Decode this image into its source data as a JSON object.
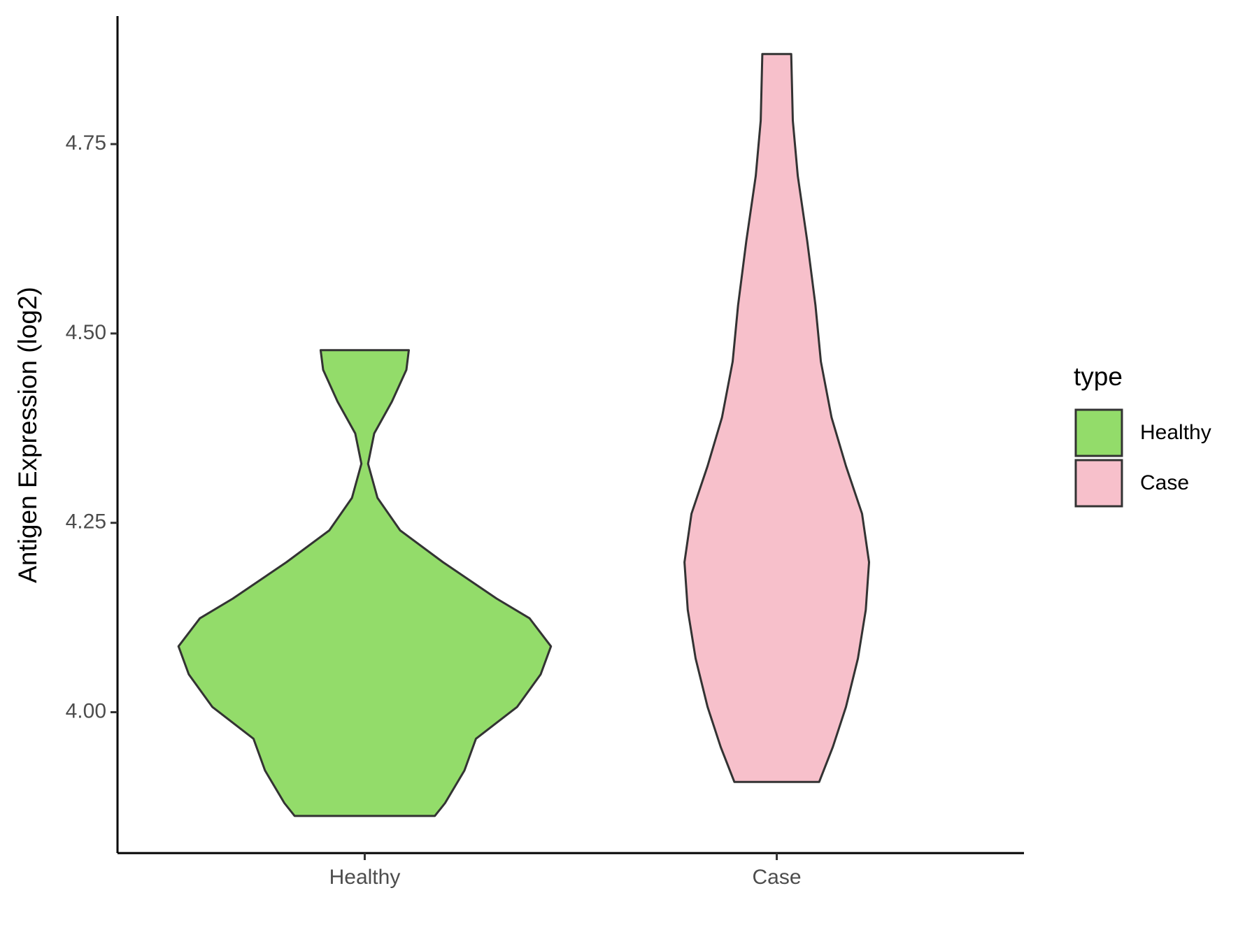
{
  "chart_data": {
    "type": "violin",
    "y_label": "Antigen Expression (log2)",
    "legend_title": "type",
    "categories": [
      "Healthy",
      "Case"
    ],
    "ylim": [
      3.814,
      4.919
    ],
    "yticks": [
      {
        "value": 4,
        "label": "4.00"
      },
      {
        "value": 4.25,
        "label": "4.25"
      },
      {
        "value": 4.5,
        "label": "4.50"
      },
      {
        "value": 4.75,
        "label": "4.75"
      }
    ],
    "legend_position": "right",
    "series": [
      {
        "name": "Healthy",
        "color": "#93dc6a",
        "y": [
          3.863,
          3.88,
          3.923,
          3.965,
          4.007,
          4.05,
          4.087,
          4.124,
          4.15,
          4.198,
          4.24,
          4.283,
          4.328,
          4.368,
          4.41,
          4.452,
          4.478
        ],
        "half_width": [
          0.17,
          0.195,
          0.242,
          0.27,
          0.37,
          0.427,
          0.452,
          0.4,
          0.32,
          0.19,
          0.086,
          0.031,
          0.008,
          0.023,
          0.066,
          0.101,
          0.107
        ]
      },
      {
        "name": "Case",
        "color": "#f7c0cb",
        "y": [
          3.908,
          3.954,
          4.007,
          4.071,
          4.135,
          4.198,
          4.262,
          4.325,
          4.389,
          4.463,
          4.537,
          4.622,
          4.708,
          4.781,
          4.869
        ],
        "half_width": [
          0.103,
          0.136,
          0.168,
          0.197,
          0.216,
          0.224,
          0.207,
          0.168,
          0.133,
          0.107,
          0.094,
          0.074,
          0.051,
          0.039,
          0.035
        ]
      }
    ]
  }
}
